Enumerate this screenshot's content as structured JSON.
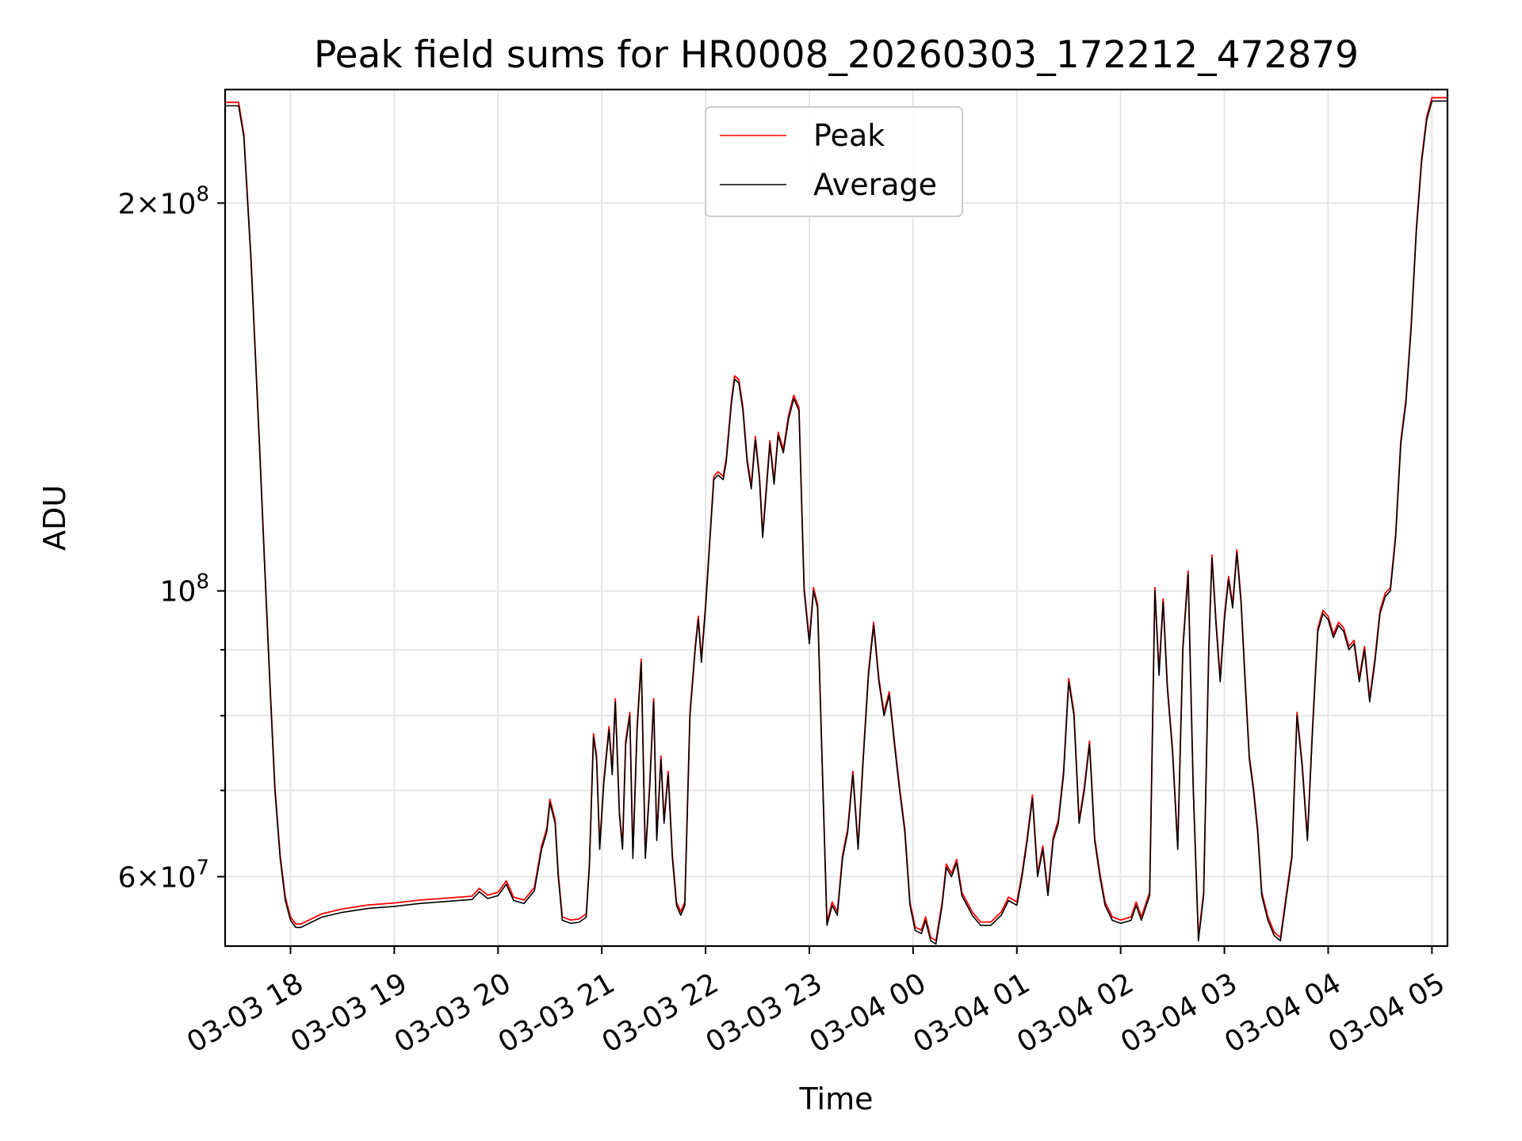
{
  "chart_data": {
    "type": "line",
    "title": "Peak field sums for HR0008_20260303_172212_472879",
    "xlabel": "Time",
    "ylabel": "ADU",
    "yscale": "log",
    "ylim": [
      53000000,
      245000000
    ],
    "xlim_hours": [
      17.37,
      29.15
    ],
    "x_ticks": [
      {
        "hours": 18,
        "label": "03-03 18"
      },
      {
        "hours": 19,
        "label": "03-03 19"
      },
      {
        "hours": 20,
        "label": "03-03 20"
      },
      {
        "hours": 21,
        "label": "03-03 21"
      },
      {
        "hours": 22,
        "label": "03-03 22"
      },
      {
        "hours": 23,
        "label": "03-03 23"
      },
      {
        "hours": 24,
        "label": "03-04 00"
      },
      {
        "hours": 25,
        "label": "03-04 01"
      },
      {
        "hours": 26,
        "label": "03-04 02"
      },
      {
        "hours": 27,
        "label": "03-04 03"
      },
      {
        "hours": 28,
        "label": "03-04 04"
      },
      {
        "hours": 29,
        "label": "03-04 05"
      }
    ],
    "y_major_ticks": [
      {
        "value": 60000000,
        "base": "6",
        "exp": "7"
      },
      {
        "value": 100000000,
        "base": "",
        "exp": "8"
      },
      {
        "value": 200000000,
        "base": "2",
        "exp": "8"
      }
    ],
    "y_minor_ticks": [
      70000000,
      80000000,
      90000000
    ],
    "grid": true,
    "legend_position": "top-center",
    "series": [
      {
        "name": "Peak",
        "color": "#ff0000"
      },
      {
        "name": "Average",
        "color": "#000000"
      }
    ],
    "points": [
      [
        17.37,
        238
      ],
      [
        17.5,
        238
      ],
      [
        17.55,
        225
      ],
      [
        17.62,
        180
      ],
      [
        17.7,
        130
      ],
      [
        17.75,
        105
      ],
      [
        17.8,
        85
      ],
      [
        17.85,
        70
      ],
      [
        17.9,
        62
      ],
      [
        17.95,
        57.5
      ],
      [
        18.0,
        55.5
      ],
      [
        18.05,
        54.8
      ],
      [
        18.1,
        54.8
      ],
      [
        18.2,
        55.3
      ],
      [
        18.3,
        55.8
      ],
      [
        18.5,
        56.3
      ],
      [
        18.75,
        56.7
      ],
      [
        19.0,
        56.9
      ],
      [
        19.25,
        57.2
      ],
      [
        19.5,
        57.4
      ],
      [
        19.75,
        57.6
      ],
      [
        19.82,
        58.4
      ],
      [
        19.9,
        57.7
      ],
      [
        20.0,
        58.0
      ],
      [
        20.08,
        59.2
      ],
      [
        20.15,
        57.5
      ],
      [
        20.25,
        57.2
      ],
      [
        20.35,
        58.5
      ],
      [
        20.42,
        63.0
      ],
      [
        20.47,
        65.0
      ],
      [
        20.5,
        68.5
      ],
      [
        20.55,
        66.0
      ],
      [
        20.58,
        60.0
      ],
      [
        20.62,
        55.5
      ],
      [
        20.7,
        55.2
      ],
      [
        20.78,
        55.3
      ],
      [
        20.85,
        55.8
      ],
      [
        20.88,
        61.0
      ],
      [
        20.92,
        77.0
      ],
      [
        20.95,
        74.0
      ],
      [
        20.98,
        63.0
      ],
      [
        21.02,
        71.0
      ],
      [
        21.07,
        78.0
      ],
      [
        21.1,
        72.0
      ],
      [
        21.13,
        82.0
      ],
      [
        21.17,
        67.0
      ],
      [
        21.2,
        63.0
      ],
      [
        21.23,
        76.0
      ],
      [
        21.27,
        80.0
      ],
      [
        21.3,
        62.0
      ],
      [
        21.34,
        78.0
      ],
      [
        21.38,
        88.0
      ],
      [
        21.42,
        62.0
      ],
      [
        21.46,
        70.0
      ],
      [
        21.5,
        82.0
      ],
      [
        21.53,
        64.0
      ],
      [
        21.57,
        74.0
      ],
      [
        21.6,
        66.0
      ],
      [
        21.64,
        72.0
      ],
      [
        21.68,
        62.0
      ],
      [
        21.72,
        57.0
      ],
      [
        21.76,
        56.0
      ],
      [
        21.8,
        57.0
      ],
      [
        21.85,
        80.0
      ],
      [
        21.9,
        90.0
      ],
      [
        21.93,
        95.0
      ],
      [
        21.96,
        88.0
      ],
      [
        22.0,
        97.0
      ],
      [
        22.05,
        112.0
      ],
      [
        22.08,
        122.0
      ],
      [
        22.12,
        123.0
      ],
      [
        22.17,
        122.0
      ],
      [
        22.2,
        126.0
      ],
      [
        22.25,
        140.0
      ],
      [
        22.28,
        146.0
      ],
      [
        22.32,
        145.0
      ],
      [
        22.36,
        138.0
      ],
      [
        22.4,
        126.0
      ],
      [
        22.44,
        120.0
      ],
      [
        22.48,
        131.0
      ],
      [
        22.52,
        122.0
      ],
      [
        22.55,
        110.0
      ],
      [
        22.58,
        118.0
      ],
      [
        22.62,
        130.0
      ],
      [
        22.66,
        121.0
      ],
      [
        22.7,
        132.0
      ],
      [
        22.75,
        128.0
      ],
      [
        22.8,
        136.0
      ],
      [
        22.85,
        141.0
      ],
      [
        22.9,
        138.0
      ],
      [
        22.95,
        100.0
      ],
      [
        23.0,
        91.0
      ],
      [
        23.04,
        100.0
      ],
      [
        23.08,
        97.0
      ],
      [
        23.12,
        75.0
      ],
      [
        23.17,
        55.0
      ],
      [
        23.22,
        57.0
      ],
      [
        23.27,
        56.0
      ],
      [
        23.32,
        62.0
      ],
      [
        23.37,
        65.0
      ],
      [
        23.42,
        72.0
      ],
      [
        23.47,
        63.0
      ],
      [
        23.52,
        74.0
      ],
      [
        23.57,
        86.0
      ],
      [
        23.62,
        94.0
      ],
      [
        23.67,
        85.0
      ],
      [
        23.72,
        80.0
      ],
      [
        23.77,
        83.0
      ],
      [
        23.82,
        76.0
      ],
      [
        23.87,
        70.0
      ],
      [
        23.92,
        65.0
      ],
      [
        23.97,
        57.0
      ],
      [
        24.02,
        54.5
      ],
      [
        24.08,
        54.2
      ],
      [
        24.12,
        55.5
      ],
      [
        24.17,
        53.5
      ],
      [
        24.22,
        53.2
      ],
      [
        24.28,
        57.0
      ],
      [
        24.32,
        61.0
      ],
      [
        24.37,
        60.0
      ],
      [
        24.42,
        61.5
      ],
      [
        24.47,
        58.0
      ],
      [
        24.52,
        57.0
      ],
      [
        24.57,
        56.0
      ],
      [
        24.65,
        55.0
      ],
      [
        24.75,
        55.0
      ],
      [
        24.85,
        56.0
      ],
      [
        24.92,
        57.5
      ],
      [
        25.0,
        57.0
      ],
      [
        25.05,
        60.0
      ],
      [
        25.1,
        64.0
      ],
      [
        25.15,
        69.0
      ],
      [
        25.2,
        60.0
      ],
      [
        25.25,
        63.0
      ],
      [
        25.3,
        58.0
      ],
      [
        25.35,
        64.0
      ],
      [
        25.4,
        66.0
      ],
      [
        25.45,
        72.0
      ],
      [
        25.5,
        85.0
      ],
      [
        25.55,
        80.0
      ],
      [
        25.6,
        66.0
      ],
      [
        25.65,
        70.0
      ],
      [
        25.7,
        76.0
      ],
      [
        25.75,
        64.0
      ],
      [
        25.8,
        60.0
      ],
      [
        25.85,
        57.0
      ],
      [
        25.92,
        55.5
      ],
      [
        26.0,
        55.2
      ],
      [
        26.1,
        55.5
      ],
      [
        26.15,
        57.0
      ],
      [
        26.2,
        55.5
      ],
      [
        26.28,
        58.0
      ],
      [
        26.33,
        100.0
      ],
      [
        26.37,
        86.0
      ],
      [
        26.41,
        98.0
      ],
      [
        26.45,
        84.0
      ],
      [
        26.5,
        75.0
      ],
      [
        26.55,
        63.0
      ],
      [
        26.6,
        90.0
      ],
      [
        26.65,
        103.0
      ],
      [
        26.7,
        70.0
      ],
      [
        26.75,
        53.5
      ],
      [
        26.8,
        58.0
      ],
      [
        26.85,
        90.0
      ],
      [
        26.88,
        106.0
      ],
      [
        26.92,
        94.0
      ],
      [
        26.96,
        85.0
      ],
      [
        27.0,
        95.0
      ],
      [
        27.04,
        102.0
      ],
      [
        27.08,
        97.0
      ],
      [
        27.12,
        107.0
      ],
      [
        27.16,
        98.0
      ],
      [
        27.2,
        85.0
      ],
      [
        27.24,
        74.0
      ],
      [
        27.28,
        70.0
      ],
      [
        27.32,
        65.0
      ],
      [
        27.36,
        58.0
      ],
      [
        27.42,
        55.5
      ],
      [
        27.48,
        54.0
      ],
      [
        27.54,
        53.5
      ],
      [
        27.6,
        58.0
      ],
      [
        27.65,
        62.0
      ],
      [
        27.7,
        80.0
      ],
      [
        27.75,
        73.0
      ],
      [
        27.8,
        64.0
      ],
      [
        27.85,
        78.0
      ],
      [
        27.9,
        93.0
      ],
      [
        27.95,
        96.0
      ],
      [
        28.0,
        95.0
      ],
      [
        28.05,
        92.0
      ],
      [
        28.1,
        94.0
      ],
      [
        28.15,
        93.0
      ],
      [
        28.2,
        90.0
      ],
      [
        28.25,
        91.0
      ],
      [
        28.3,
        85.0
      ],
      [
        28.35,
        90.0
      ],
      [
        28.4,
        82.0
      ],
      [
        28.45,
        88.0
      ],
      [
        28.5,
        96.0
      ],
      [
        28.55,
        99.0
      ],
      [
        28.6,
        100.0
      ],
      [
        28.65,
        110.0
      ],
      [
        28.7,
        130.0
      ],
      [
        28.75,
        140.0
      ],
      [
        28.8,
        160.0
      ],
      [
        28.85,
        190.0
      ],
      [
        28.9,
        215.0
      ],
      [
        28.95,
        232.0
      ],
      [
        29.0,
        240.0
      ],
      [
        29.15,
        240.0
      ]
    ]
  }
}
